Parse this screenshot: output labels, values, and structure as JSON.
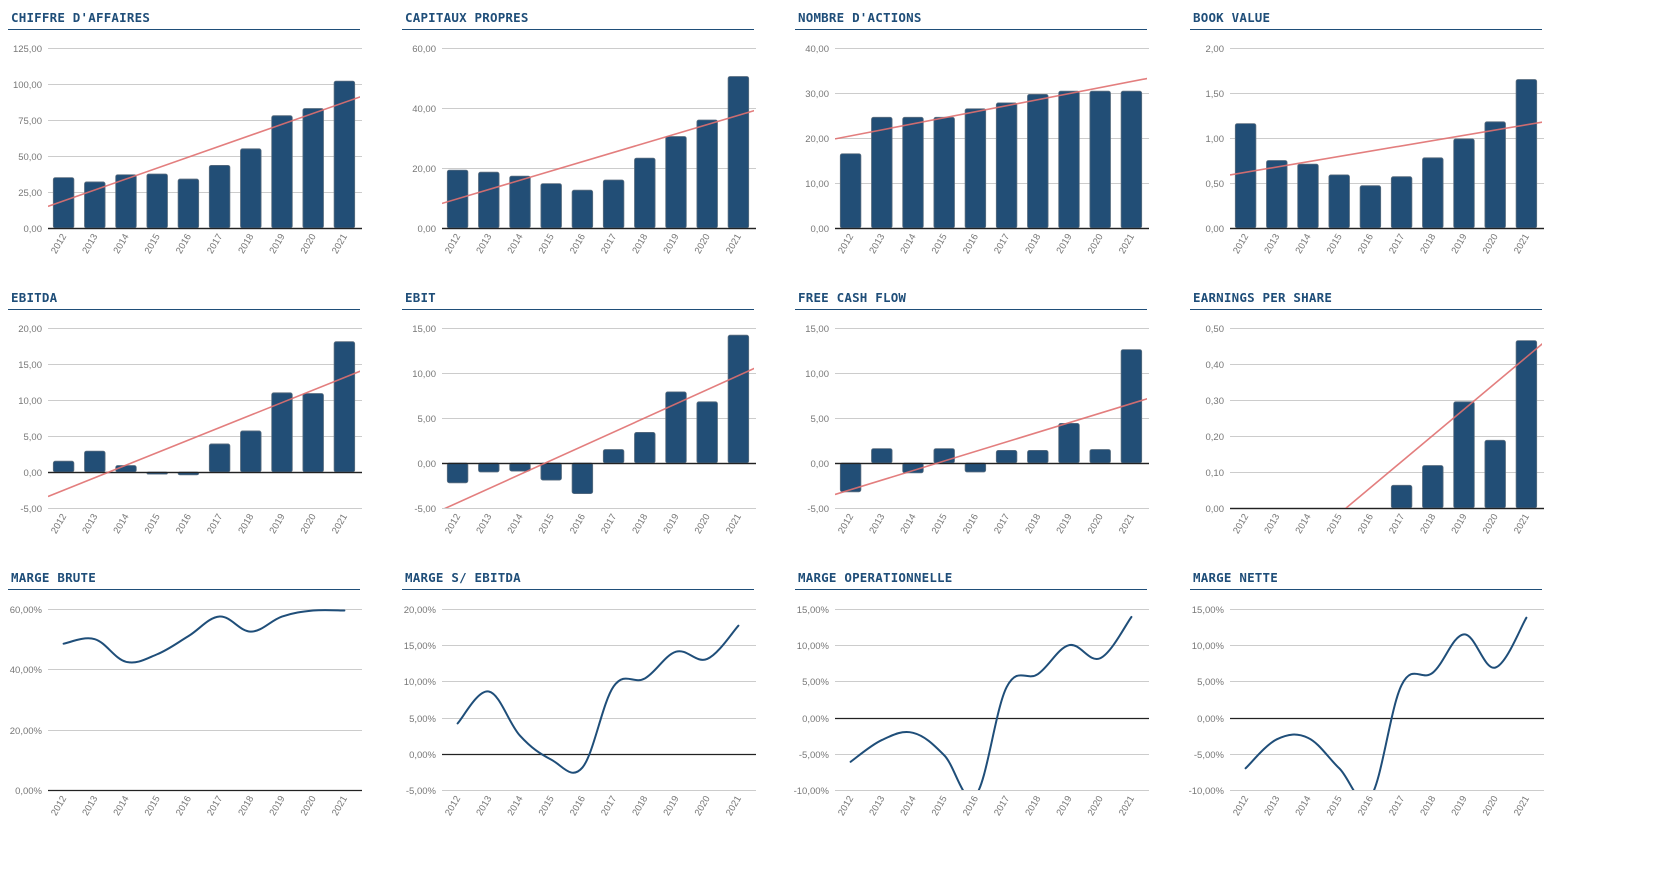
{
  "colors": {
    "bar": "#224e76",
    "bar_stroke": "#5c6f80",
    "trend": "#e07070",
    "line": "#1f4e79",
    "grid": "#cccccc",
    "axis": "#222222",
    "title": "#1f4e79"
  },
  "chart_data": [
    {
      "id": "chiffre-affaires",
      "type": "bar",
      "title": "CHIFFRE D'AFFAIRES",
      "categories": [
        "2012",
        "2013",
        "2014",
        "2015",
        "2016",
        "2017",
        "2018",
        "2019",
        "2020",
        "2021"
      ],
      "values": [
        35.0,
        32.0,
        37.0,
        37.5,
        34.0,
        43.5,
        55.0,
        78.0,
        83.0,
        102.0
      ],
      "trendline": {
        "start": 15.0,
        "end": 91.5
      },
      "ylim": [
        0,
        125
      ],
      "yticks": [
        0,
        25,
        50,
        75,
        100,
        125
      ],
      "ytick_labels": [
        "0,00",
        "25,00",
        "50,00",
        "75,00",
        "100,00",
        "125,00"
      ],
      "grid": true,
      "xlabel": "",
      "ylabel": ""
    },
    {
      "id": "capitaux-propres",
      "type": "bar",
      "title": "CAPITAUX PROPRES",
      "categories": [
        "2012",
        "2013",
        "2014",
        "2015",
        "2016",
        "2017",
        "2018",
        "2019",
        "2020",
        "2021"
      ],
      "values": [
        19.3,
        18.6,
        17.3,
        14.8,
        12.6,
        16.0,
        23.3,
        30.5,
        36.0,
        50.5
      ],
      "trendline": {
        "start": 8.2,
        "end": 39.3
      },
      "ylim": [
        0,
        60
      ],
      "yticks": [
        0,
        20,
        40,
        60
      ],
      "ytick_labels": [
        "0,00",
        "20,00",
        "40,00",
        "60,00"
      ],
      "grid": true,
      "xlabel": "",
      "ylabel": ""
    },
    {
      "id": "nombre-actions",
      "type": "bar",
      "title": "NOMBRE D'ACTIONS",
      "categories": [
        "2012",
        "2013",
        "2014",
        "2015",
        "2016",
        "2017",
        "2018",
        "2019",
        "2020",
        "2021"
      ],
      "values": [
        16.5,
        24.6,
        24.6,
        24.6,
        26.5,
        27.8,
        29.7,
        30.4,
        30.4,
        30.4
      ],
      "trendline": {
        "start": 19.8,
        "end": 33.3
      },
      "ylim": [
        0,
        40
      ],
      "yticks": [
        0,
        10,
        20,
        30,
        40
      ],
      "ytick_labels": [
        "0,00",
        "10,00",
        "20,00",
        "30,00",
        "40,00"
      ],
      "grid": true,
      "xlabel": "",
      "ylabel": ""
    },
    {
      "id": "book-value",
      "type": "bar",
      "title": "BOOK VALUE",
      "categories": [
        "2012",
        "2013",
        "2014",
        "2015",
        "2016",
        "2017",
        "2018",
        "2019",
        "2020",
        "2021"
      ],
      "values": [
        1.16,
        0.75,
        0.71,
        0.59,
        0.47,
        0.57,
        0.78,
        0.99,
        1.18,
        1.65
      ],
      "trendline": {
        "start": 0.59,
        "end": 1.18
      },
      "ylim": [
        0,
        2
      ],
      "yticks": [
        0,
        0.5,
        1,
        1.5,
        2
      ],
      "ytick_labels": [
        "0,00",
        "0,50",
        "1,00",
        "1,50",
        "2,00"
      ],
      "grid": true,
      "xlabel": "",
      "ylabel": ""
    },
    {
      "id": "ebitda",
      "type": "bar",
      "title": "EBITDA",
      "categories": [
        "2012",
        "2013",
        "2014",
        "2015",
        "2016",
        "2017",
        "2018",
        "2019",
        "2020",
        "2021"
      ],
      "values": [
        1.5,
        2.9,
        0.9,
        -0.3,
        -0.4,
        3.9,
        5.7,
        11.0,
        10.9,
        18.1
      ],
      "trendline": {
        "start": -3.4,
        "end": 14.1
      },
      "ylim": [
        -5,
        20
      ],
      "yticks": [
        -5,
        0,
        5,
        10,
        15,
        20
      ],
      "ytick_labels": [
        "-5,00",
        "0,00",
        "5,00",
        "10,00",
        "15,00",
        "20,00"
      ],
      "grid": true,
      "xlabel": "",
      "ylabel": ""
    },
    {
      "id": "ebit",
      "type": "bar",
      "title": "EBIT",
      "categories": [
        "2012",
        "2013",
        "2014",
        "2015",
        "2016",
        "2017",
        "2018",
        "2019",
        "2020",
        "2021"
      ],
      "values": [
        -2.2,
        -1.0,
        -0.9,
        -1.9,
        -3.4,
        1.5,
        3.4,
        7.9,
        6.8,
        14.2
      ],
      "trendline": {
        "start": -5.2,
        "end": 10.6
      },
      "ylim": [
        -5,
        15
      ],
      "yticks": [
        -5,
        0,
        5,
        10,
        15
      ],
      "ytick_labels": [
        "-5,00",
        "0,00",
        "5,00",
        "10,00",
        "15,00"
      ],
      "grid": true,
      "xlabel": "",
      "ylabel": ""
    },
    {
      "id": "free-cash-flow",
      "type": "bar",
      "title": "FREE CASH FLOW",
      "categories": [
        "2012",
        "2013",
        "2014",
        "2015",
        "2016",
        "2017",
        "2018",
        "2019",
        "2020",
        "2021"
      ],
      "values": [
        -3.2,
        1.6,
        -1.1,
        1.6,
        -1.0,
        1.4,
        1.4,
        4.4,
        1.5,
        12.6
      ],
      "trendline": {
        "start": -3.5,
        "end": 7.2
      },
      "ylim": [
        -5,
        15
      ],
      "yticks": [
        -5,
        0,
        5,
        10,
        15
      ],
      "ytick_labels": [
        "-5,00",
        "0,00",
        "5,00",
        "10,00",
        "15,00"
      ],
      "grid": true,
      "xlabel": "",
      "ylabel": ""
    },
    {
      "id": "earnings-per-share",
      "type": "bar",
      "title": "EARNINGS PER SHARE",
      "categories": [
        "2012",
        "2013",
        "2014",
        "2015",
        "2016",
        "2017",
        "2018",
        "2019",
        "2020",
        "2021"
      ],
      "values": [
        0,
        0,
        0,
        0,
        0,
        0.063,
        0.118,
        0.295,
        0.188,
        0.465
      ],
      "trendline": {
        "start": -0.27,
        "end": 0.46
      },
      "ylim": [
        0,
        0.5
      ],
      "yticks": [
        0,
        0.1,
        0.2,
        0.3,
        0.4,
        0.5
      ],
      "ytick_labels": [
        "0,00",
        "0,10",
        "0,20",
        "0,30",
        "0,40",
        "0,50"
      ],
      "grid": true,
      "xlabel": "",
      "ylabel": ""
    },
    {
      "id": "marge-brute",
      "type": "line",
      "title": "MARGE BRUTE",
      "categories": [
        "2012",
        "2013",
        "2014",
        "2015",
        "2016",
        "2017",
        "2018",
        "2019",
        "2020",
        "2021"
      ],
      "values": [
        48.5,
        50.0,
        42.5,
        45.0,
        51.0,
        57.5,
        52.5,
        57.5,
        59.5,
        59.5
      ],
      "ylim": [
        0,
        60
      ],
      "yticks": [
        0,
        20,
        40,
        60
      ],
      "ytick_labels": [
        "0,00%",
        "20,00%",
        "40,00%",
        "60,00%"
      ],
      "grid": true,
      "xlabel": "",
      "ylabel": ""
    },
    {
      "id": "marge-ebitda",
      "type": "line",
      "title": "MARGE S/ EBITDA",
      "categories": [
        "2012",
        "2013",
        "2014",
        "2015",
        "2016",
        "2017",
        "2018",
        "2019",
        "2020",
        "2021"
      ],
      "values": [
        4.2,
        8.6,
        2.5,
        -0.8,
        -1.9,
        9.3,
        10.4,
        14.1,
        13.1,
        17.7
      ],
      "ylim": [
        -5,
        20
      ],
      "yticks": [
        -5,
        0,
        5,
        10,
        15,
        20
      ],
      "ytick_labels": [
        "-5,00%",
        "0,00%",
        "5,00%",
        "10,00%",
        "15,00%",
        "20,00%"
      ],
      "grid": true,
      "xlabel": "",
      "ylabel": ""
    },
    {
      "id": "marge-operationnelle",
      "type": "line",
      "title": "MARGE OPERATIONNELLE",
      "categories": [
        "2012",
        "2013",
        "2014",
        "2015",
        "2016",
        "2017",
        "2018",
        "2019",
        "2020",
        "2021"
      ],
      "values": [
        -6.1,
        -3.1,
        -2.1,
        -5.2,
        -10.8,
        4.2,
        6.0,
        10.0,
        8.2,
        13.9
      ],
      "ylim": [
        -10,
        15
      ],
      "yticks": [
        -10,
        -5,
        0,
        5,
        10,
        15
      ],
      "ytick_labels": [
        "-10,00%",
        "-5,00%",
        "0,00%",
        "5,00%",
        "10,00%",
        "15,00%"
      ],
      "grid": true,
      "xlabel": "",
      "ylabel": ""
    },
    {
      "id": "marge-nette",
      "type": "line",
      "title": "MARGE NETTE",
      "categories": [
        "2012",
        "2013",
        "2014",
        "2015",
        "2016",
        "2017",
        "2018",
        "2019",
        "2020",
        "2021"
      ],
      "values": [
        -7.0,
        -3.0,
        -2.8,
        -7.0,
        -11.0,
        4.5,
        6.2,
        11.5,
        6.9,
        13.8
      ],
      "ylim": [
        -10,
        15
      ],
      "yticks": [
        -10,
        -5,
        0,
        5,
        10,
        15
      ],
      "ytick_labels": [
        "-10,00%",
        "-5,00%",
        "0,00%",
        "5,00%",
        "10,00%",
        "15,00%"
      ],
      "grid": true,
      "xlabel": "",
      "ylabel": ""
    }
  ]
}
